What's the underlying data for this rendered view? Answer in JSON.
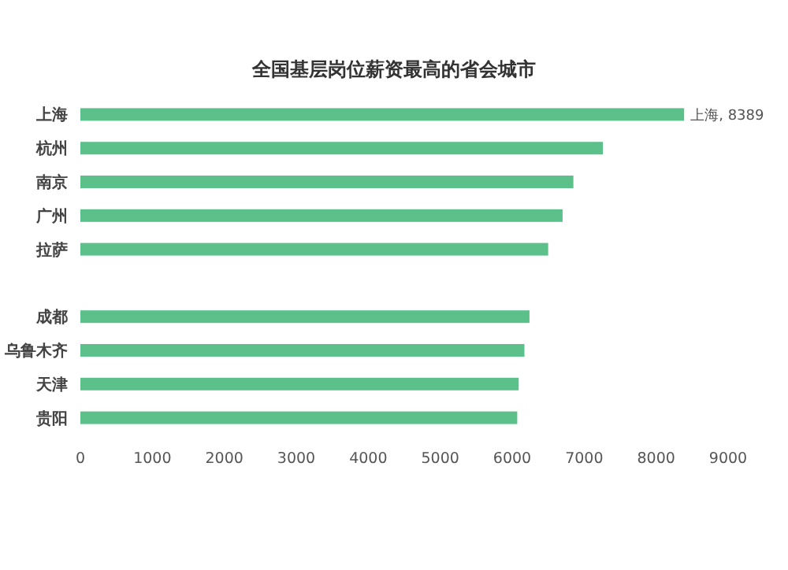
{
  "chart_data": {
    "type": "bar",
    "orientation": "horizontal",
    "title": "全国基层岗位薪资最高的省会城市",
    "categories": [
      "上海",
      "杭州",
      "南京",
      "广州",
      "拉萨",
      null,
      "成都",
      "乌鲁木齐",
      "天津",
      "贵阳"
    ],
    "values": [
      8389,
      7260,
      6850,
      6700,
      6500,
      null,
      6240,
      6170,
      6090,
      6070
    ],
    "value_labels": [
      "上海, 8389",
      null,
      null,
      null,
      null,
      null,
      null,
      null,
      null,
      null
    ],
    "color": "#5cc08a",
    "xlim": [
      0,
      9000
    ],
    "xticks": [
      0,
      1000,
      2000,
      3000,
      4000,
      5000,
      6000,
      7000,
      8000,
      9000
    ]
  }
}
